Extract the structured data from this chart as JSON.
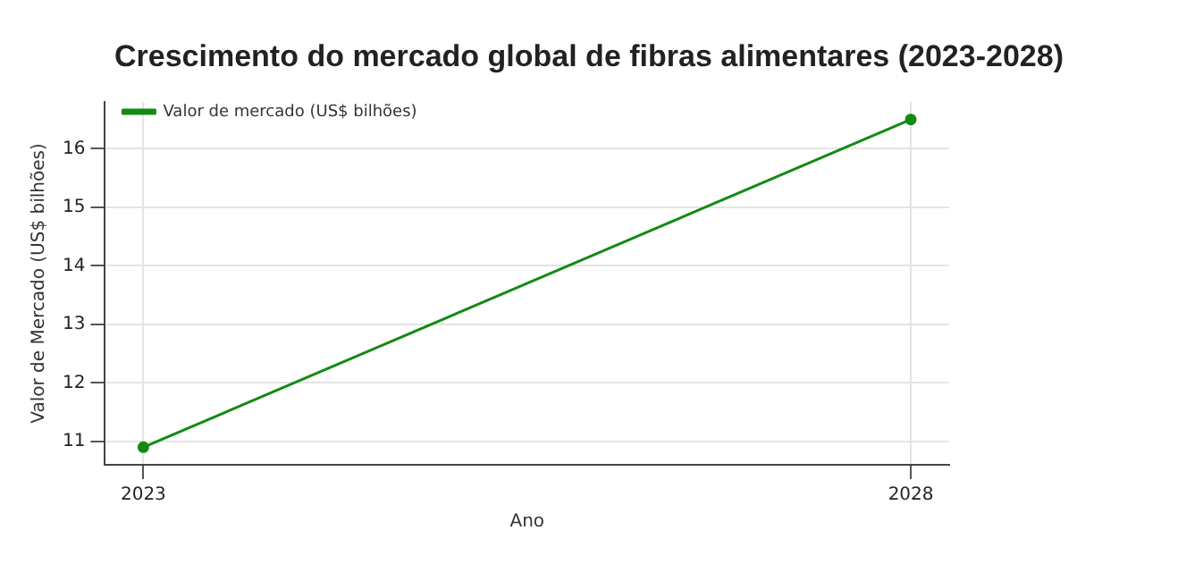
{
  "chart_data": {
    "type": "line",
    "title": "Crescimento do mercado global de fibras alimentares (2023-2028)",
    "xlabel": "Ano",
    "ylabel": "Valor de Mercado (US$ bilhões)",
    "x": [
      2023,
      2028
    ],
    "series": [
      {
        "name": "Valor de mercado (US$ bilhões)",
        "color": "#138a13",
        "values": [
          10.9,
          16.5
        ]
      }
    ],
    "xlim": [
      2022.75,
      2028.25
    ],
    "xticks": [
      2023,
      2028
    ],
    "ylim": [
      10.6,
      16.8
    ],
    "yticks": [
      11,
      12,
      13,
      14,
      15,
      16
    ],
    "grid": true,
    "legend": "top left",
    "marker": "circle",
    "line_style": "solid"
  }
}
